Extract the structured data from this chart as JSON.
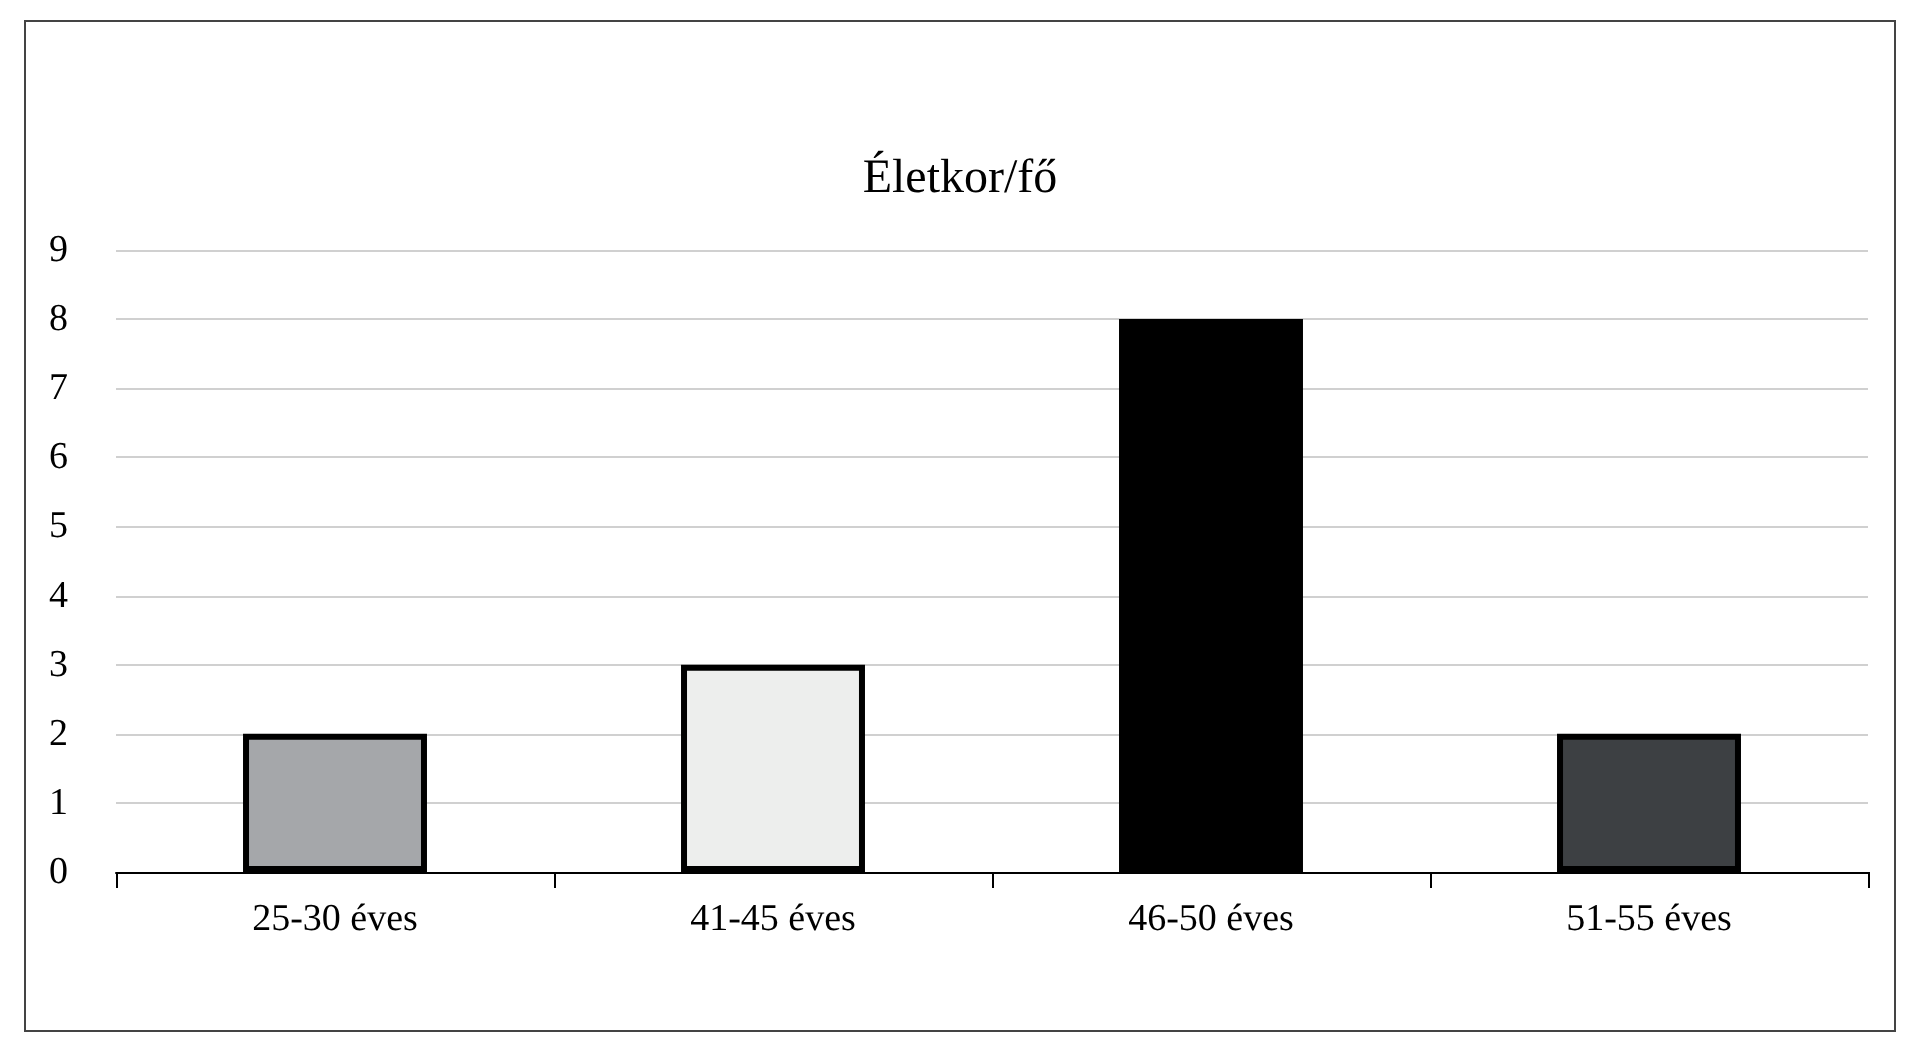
{
  "chart_data": {
    "type": "bar",
    "title": "Életkor/fő",
    "categories": [
      "25-30 éves",
      "41-45 éves",
      "46-50 éves",
      "51-55 éves"
    ],
    "values": [
      2,
      3,
      8,
      2
    ],
    "colors": [
      "#a5a7aa",
      "#edeeed",
      "#000000",
      "#3d4043"
    ],
    "ylim": [
      0,
      9
    ],
    "yticks": [
      0,
      1,
      2,
      3,
      4,
      5,
      6,
      7,
      8,
      9
    ],
    "grid": "y"
  }
}
